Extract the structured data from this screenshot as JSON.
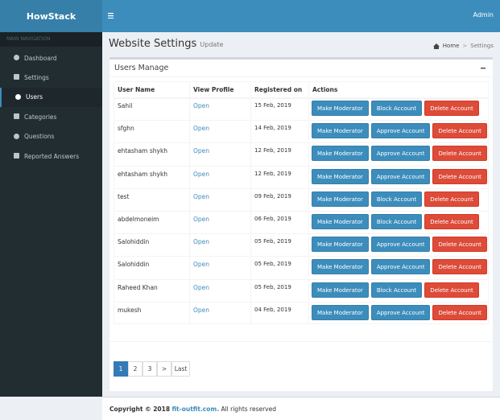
{
  "header": {
    "logo": "HowStack",
    "user": "Admin"
  },
  "sidebar": {
    "heading": "MAIN NAVIGATION",
    "items": [
      "Dashboard",
      "Settings",
      "Users",
      "Categories",
      "Questions",
      "Reported Answers"
    ],
    "active": "Users"
  },
  "content": {
    "title": "Website Settings",
    "subtitle": "Update",
    "breadcrumb": [
      "Home",
      "Settings"
    ]
  },
  "box": {
    "title": "Users Manage",
    "table": {
      "columns": [
        "User Name",
        "View Profile",
        "Registered on",
        "Actions"
      ],
      "rows": [
        {
          "name": "Sahil",
          "profile": "Open",
          "registered": "15 Feb, 2019",
          "actions": [
            "Make Moderator",
            "Block Account",
            "Delete Account"
          ]
        },
        {
          "name": "sfghn",
          "profile": "Open",
          "registered": "14 Feb, 2019",
          "actions": [
            "Make Moderator",
            "Approve Account",
            "Delete Account"
          ]
        },
        {
          "name": "ehtasham shykh",
          "profile": "Open",
          "registered": "12 Feb, 2019",
          "actions": [
            "Make Moderator",
            "Approve Account",
            "Delete Account"
          ]
        },
        {
          "name": "ehtasham shykh",
          "profile": "Open",
          "registered": "12 Feb, 2019",
          "actions": [
            "Make Moderator",
            "Approve Account",
            "Delete Account"
          ]
        },
        {
          "name": "test",
          "profile": "Open",
          "registered": "09 Feb, 2019",
          "actions": [
            "Make Moderator",
            "Block Account",
            "Delete Account"
          ]
        },
        {
          "name": "abdelmoneim",
          "profile": "Open",
          "registered": "06 Feb, 2019",
          "actions": [
            "Make Moderator",
            "Block Account",
            "Delete Account"
          ]
        },
        {
          "name": "Salohiddin",
          "profile": "Open",
          "registered": "05 Feb, 2019",
          "actions": [
            "Make Moderator",
            "Approve Account",
            "Delete Account"
          ]
        },
        {
          "name": "Salohiddin",
          "profile": "Open",
          "registered": "05 Feb, 2019",
          "actions": [
            "Make Moderator",
            "Approve Account",
            "Delete Account"
          ]
        },
        {
          "name": "Raheed Khan",
          "profile": "Open",
          "registered": "05 Feb, 2019",
          "actions": [
            "Make Moderator",
            "Block Account",
            "Delete Account"
          ]
        },
        {
          "name": "mukesh",
          "profile": "Open",
          "registered": "04 Feb, 2019",
          "actions": [
            "Make Moderator",
            "Approve Account",
            "Delete Account"
          ]
        }
      ]
    },
    "pagination": {
      "pages": [
        "1",
        "2",
        "3",
        ">",
        "Last"
      ],
      "current": "1"
    }
  },
  "footer": {
    "copyright": "Copyright © 2018",
    "link": "fit-outfit.com.",
    "rest": "All rights reserved"
  }
}
